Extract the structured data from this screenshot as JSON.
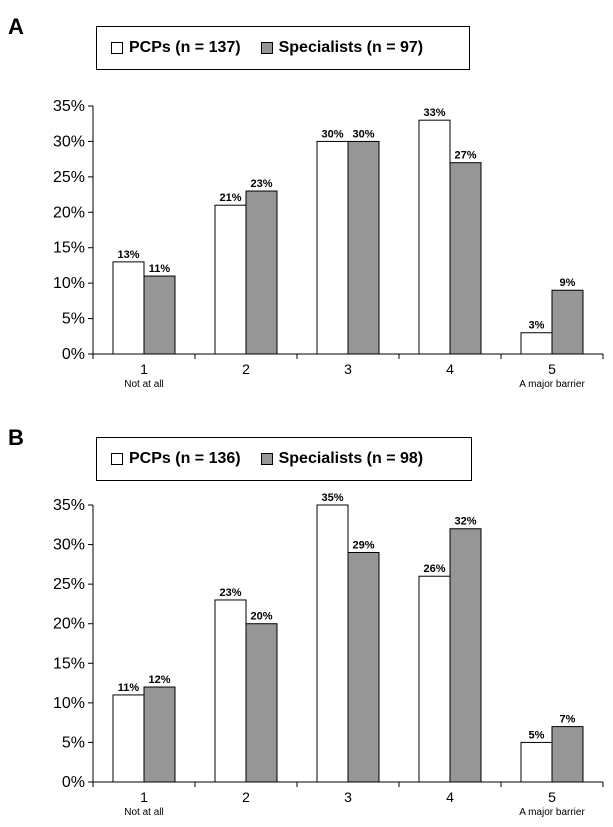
{
  "chart_data": [
    {
      "panel_label": "A",
      "type": "bar",
      "categories": [
        "1",
        "2",
        "3",
        "4",
        "5"
      ],
      "category_sublabels": [
        "Not at all",
        "",
        "",
        "",
        "A major barrier"
      ],
      "series": [
        {
          "name": "PCPs (n = 137)",
          "values": [
            13,
            21,
            30,
            33,
            3
          ],
          "labels": [
            "13%",
            "21%",
            "30%",
            "33%",
            "3%"
          ],
          "color": "#ffffff"
        },
        {
          "name": "Specialists (n = 97)",
          "values": [
            11,
            23,
            30,
            27,
            9
          ],
          "labels": [
            "11%",
            "23%",
            "30%",
            "27%",
            "9%"
          ],
          "color": "#969696"
        }
      ],
      "yticks": [
        "0%",
        "5%",
        "10%",
        "15%",
        "20%",
        "25%",
        "30%",
        "35%"
      ],
      "ylim": [
        0,
        35
      ],
      "grid": false,
      "legend": "top"
    },
    {
      "panel_label": "B",
      "type": "bar",
      "categories": [
        "1",
        "2",
        "3",
        "4",
        "5"
      ],
      "category_sublabels": [
        "Not at all",
        "",
        "",
        "",
        "A major barrier"
      ],
      "series": [
        {
          "name": "PCPs (n = 136)",
          "values": [
            11,
            23,
            35,
            26,
            5
          ],
          "labels": [
            "11%",
            "23%",
            "35%",
            "26%",
            "5%"
          ],
          "color": "#ffffff"
        },
        {
          "name": "Specialists (n = 98)",
          "values": [
            12,
            20,
            29,
            32,
            7
          ],
          "labels": [
            "12%",
            "20%",
            "29%",
            "32%",
            "7%"
          ],
          "color": "#969696"
        }
      ],
      "yticks": [
        "0%",
        "5%",
        "10%",
        "15%",
        "20%",
        "25%",
        "30%",
        "35%"
      ],
      "ylim": [
        0,
        35
      ],
      "grid": false,
      "legend": "top"
    }
  ]
}
